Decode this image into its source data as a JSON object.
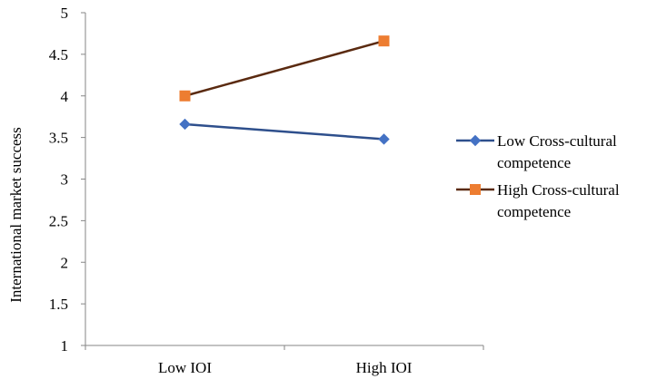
{
  "chart_data": {
    "type": "line",
    "categories": [
      "Low IOI",
      "High IOI"
    ],
    "series": [
      {
        "name": "Low Cross-cultural competence",
        "legend_lines": [
          "Low Cross-cultural",
          "competence"
        ],
        "values": [
          3.66,
          3.48
        ],
        "color": "#2E4F8C",
        "marker_color": "#4472C4",
        "marker": "diamond"
      },
      {
        "name": "High Cross-cultural competence",
        "legend_lines": [
          "High Cross-cultural",
          "competence"
        ],
        "values": [
          4.0,
          4.66
        ],
        "color": "#5A2A10",
        "marker_color": "#ED7D31",
        "marker": "square"
      }
    ],
    "title": "",
    "xlabel": "",
    "ylabel": "International market success",
    "ylim": [
      1,
      5
    ],
    "yticks": [
      "1",
      "1.5",
      "2",
      "2.5",
      "3",
      "3.5",
      "4",
      "4.5",
      "5"
    ],
    "grid": false,
    "legend_position": "right"
  }
}
